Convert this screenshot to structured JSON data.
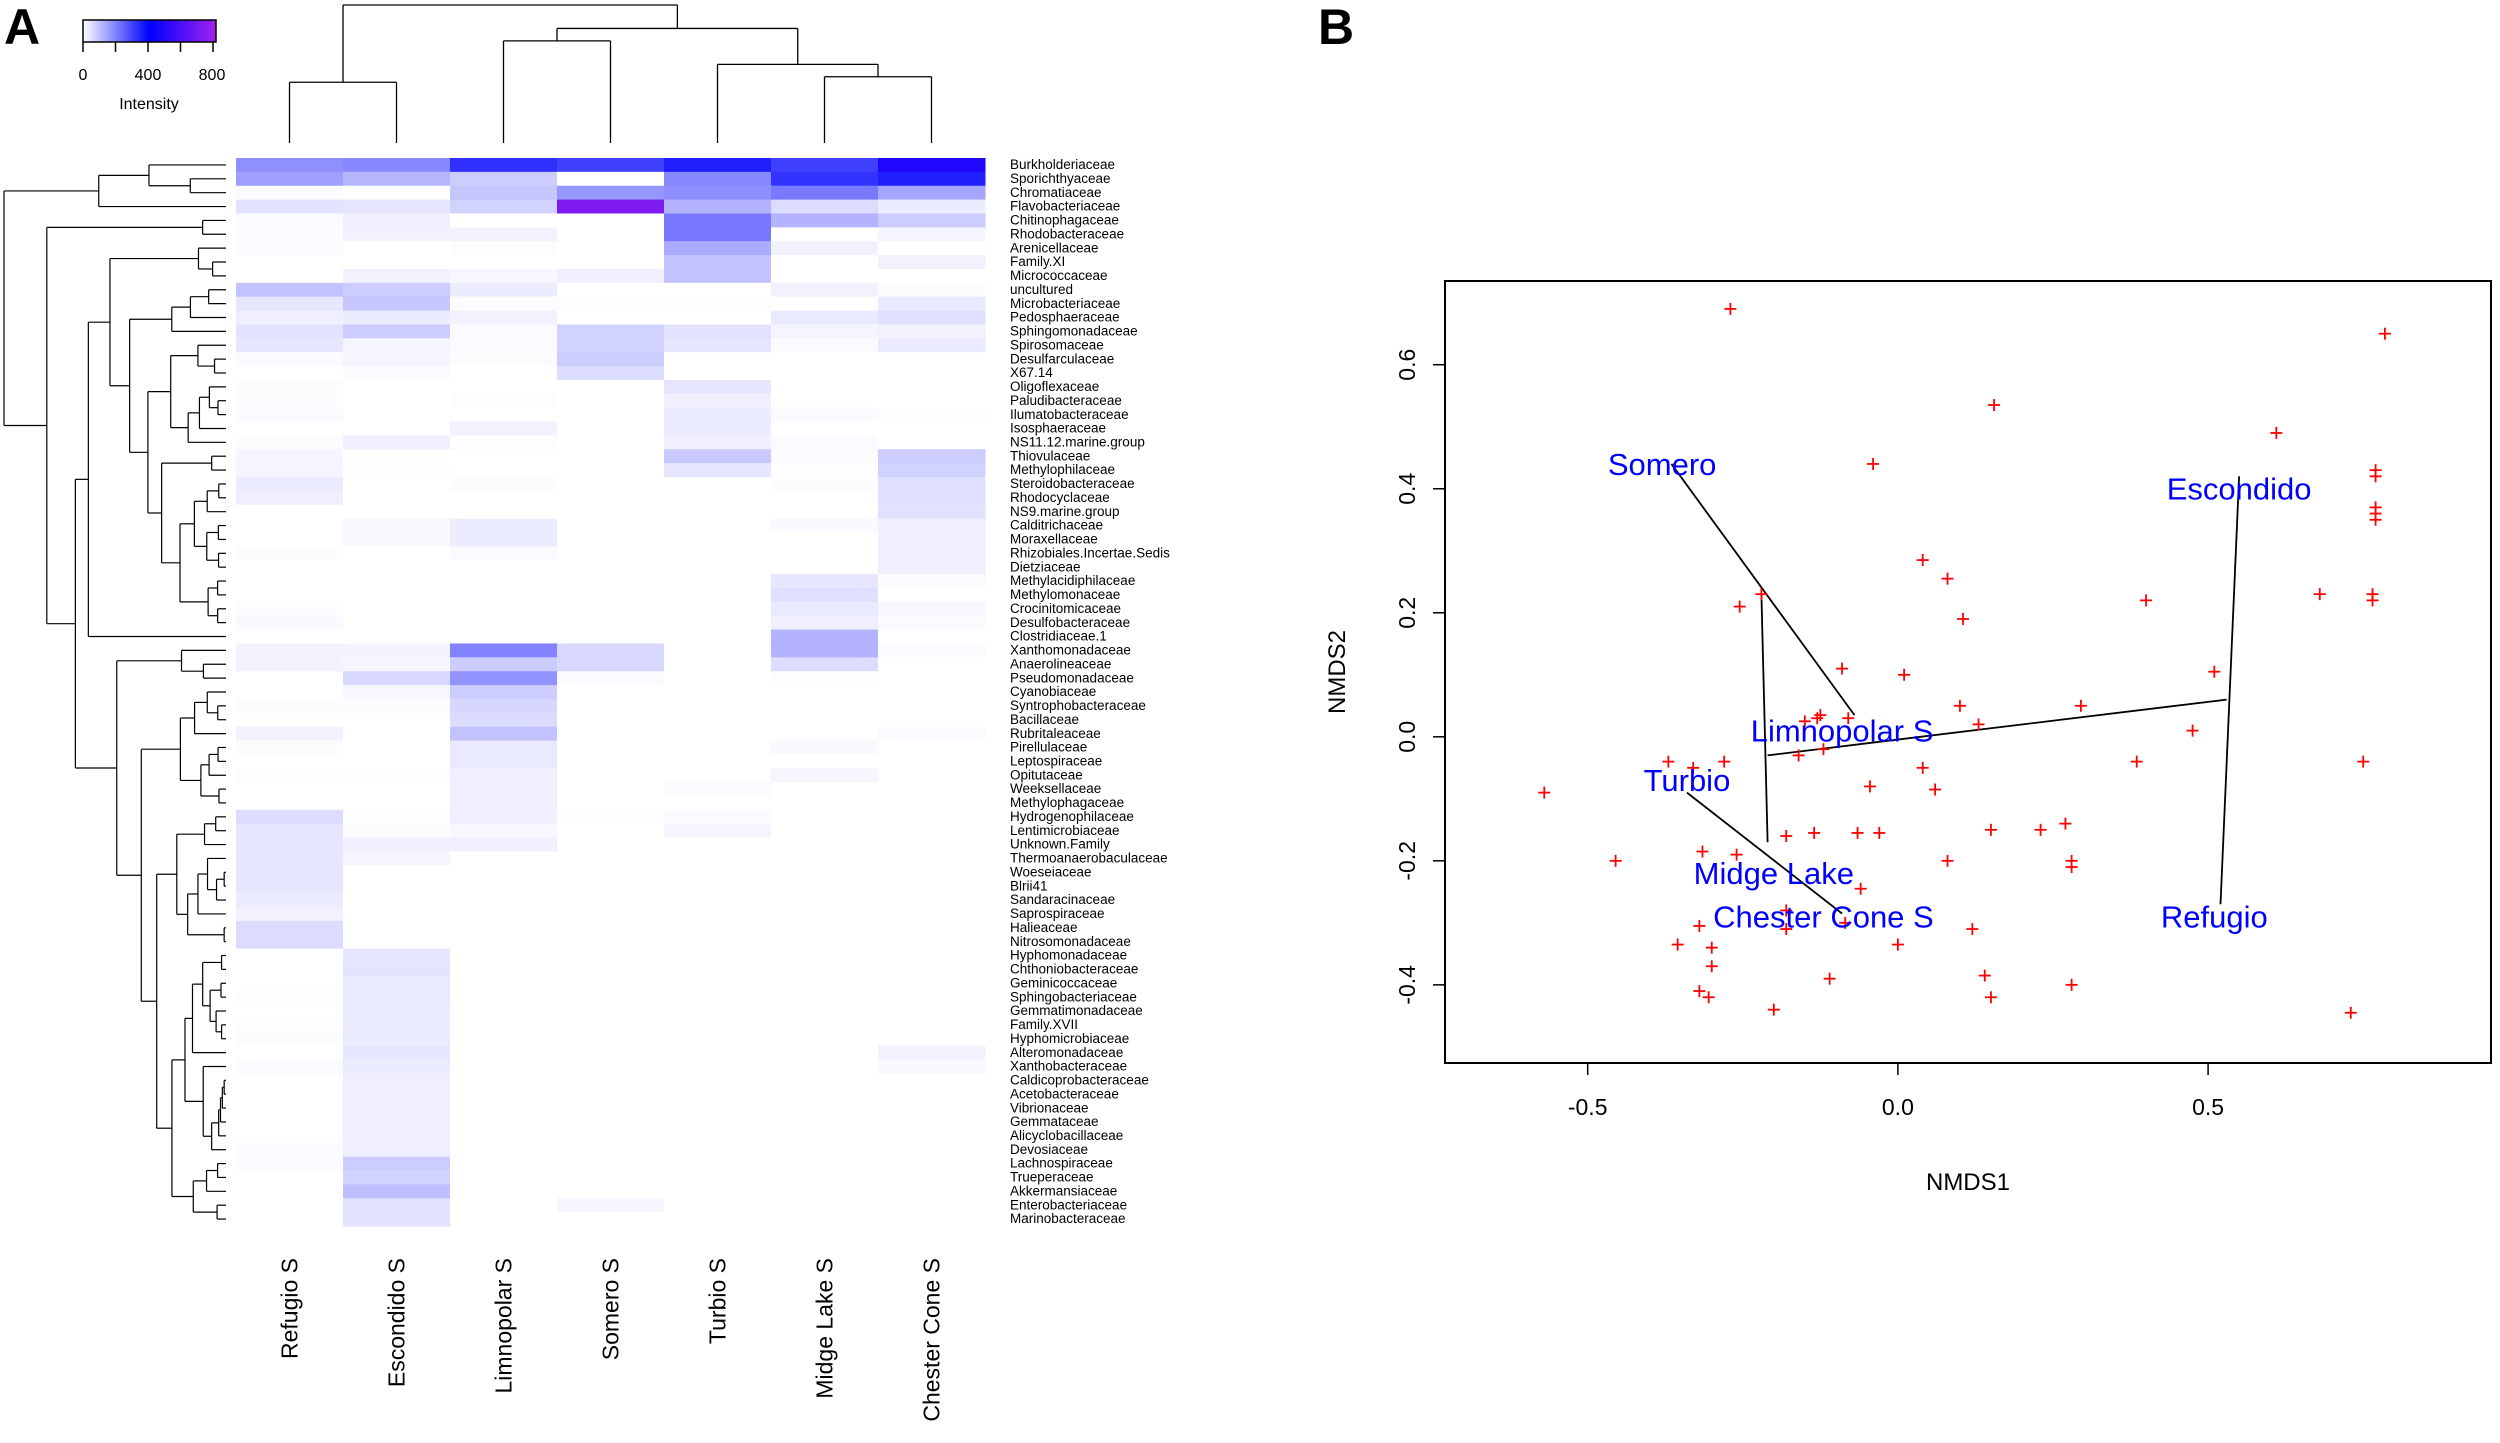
{
  "panel_a_letter": "A",
  "panel_b_letter": "B",
  "chart_data": [
    {
      "type": "heatmap",
      "title": "",
      "colorbar": {
        "label": "Intensity",
        "ticks": [
          "0",
          "400",
          "800"
        ],
        "range": [
          0,
          800
        ],
        "colors": [
          "#ffffff",
          "#0000ff",
          "#a020f0"
        ]
      },
      "columns": [
        "Refugio S",
        "Escondido S",
        "Limnopolar S",
        "Somero S",
        "Turbio S",
        "Midge Lake S",
        "Chester Cone S"
      ],
      "col_tree": {
        "h": 1,
        "children": [
          {
            "h": 0.44,
            "children": [
              0,
              1
            ]
          },
          {
            "h": 0.83,
            "children": [
              {
                "h": 0.74,
                "children": [
                  2,
                  3
                ]
              },
              {
                "h": 0.57,
                "children": [
                  4,
                  {
                    "h": 0.48,
                    "children": [
                      5,
                      6
                    ]
                  }
                ]
              }
            ]
          }
        ]
      },
      "rows": [
        "Burkholderiaceae",
        "Sporichthyaceae",
        "Chromatiaceae",
        "Flavobacteriaceae",
        "Chitinophagaceae",
        "Rhodobacteraceae",
        "Arenicellaceae",
        "Family.XI",
        "Micrococcaceae",
        "uncultured",
        "Microbacteriaceae",
        "Pedosphaeraceae",
        "Sphingomonadaceae",
        "Spirosomaceae",
        "Desulfarculaceae",
        "X67.14",
        "Oligoflexaceae",
        "Paludibacteraceae",
        "Ilumatobacteraceae",
        "Isosphaeraceae",
        "NS11.12.marine.group",
        "Thiovulaceae",
        "Methylophilaceae",
        "Steroidobacteraceae",
        "Rhodocyclaceae",
        "NS9.marine.group",
        "Calditrichaceae",
        "Moraxellaceae",
        "Rhizobiales.Incertae.Sedis",
        "Dietziaceae",
        "Methylacidiphilaceae",
        "Methylomonaceae",
        "Crocinitomicaceae",
        "Desulfobacteraceae",
        "Clostridiaceae.1",
        "Xanthomonadaceae",
        "Anaerolineaceae",
        "Pseudomonadaceae",
        "Cyanobiaceae",
        "Syntrophobacteraceae",
        "Bacillaceae",
        "Rubritaleaceae",
        "Pirellulaceae",
        "Leptospiraceae",
        "Opitutaceae",
        "Weeksellaceae",
        "Methylophagaceae",
        "Hydrogenophilaceae",
        "Lentimicrobiaceae",
        "Unknown.Family",
        "Thermoanaerobaculaceae",
        "Woeseiaceae",
        "Blrii41",
        "Sandaracinaceae",
        "Saprospiraceae",
        "Halieaceae",
        "Nitrosomonadaceae",
        "Hyphomonadaceae",
        "Chthoniobacteraceae",
        "Geminicoccaceae",
        "Sphingobacteriaceae",
        "Gemmatimonadaceae",
        "Family.XVII",
        "Hyphomicrobiaceae",
        "Alteromonadaceae",
        "Xanthobacteraceae",
        "Caldicoprobacteraceae",
        "Acetobacteraceae",
        "Vibrionaceae",
        "Gemmataceae",
        "Alicyclobacillaceae",
        "Devosiaceae",
        "Lachnospiraceae",
        "Trueperaceae",
        "Akkermansiaceae",
        "Enterobacteriaceae",
        "Marinobacteraceae"
      ],
      "values": [
        [
          175,
          185,
          325,
          300,
          350,
          300,
          480
        ],
        [
          150,
          115,
          80,
          0,
          185,
          320,
          350
        ],
        [
          8,
          0,
          90,
          165,
          175,
          210,
          140
        ],
        [
          45,
          40,
          70,
          720,
          120,
          55,
          30
        ],
        [
          8,
          25,
          0,
          0,
          210,
          120,
          80
        ],
        [
          8,
          20,
          20,
          0,
          215,
          0,
          15
        ],
        [
          8,
          0,
          5,
          0,
          130,
          20,
          0
        ],
        [
          0,
          0,
          0,
          0,
          95,
          0,
          20
        ],
        [
          0,
          20,
          12,
          25,
          95,
          0,
          0
        ],
        [
          95,
          80,
          30,
          0,
          0,
          20,
          4
        ],
        [
          40,
          90,
          5,
          5,
          3,
          0,
          35
        ],
        [
          25,
          30,
          20,
          0,
          0,
          35,
          50
        ],
        [
          45,
          80,
          8,
          70,
          45,
          15,
          20
        ],
        [
          40,
          15,
          8,
          70,
          40,
          8,
          35
        ],
        [
          8,
          15,
          5,
          80,
          0,
          0,
          0
        ],
        [
          0,
          8,
          0,
          55,
          0,
          0,
          0
        ],
        [
          5,
          0,
          0,
          0,
          40,
          0,
          0
        ],
        [
          5,
          0,
          5,
          0,
          25,
          0,
          0
        ],
        [
          8,
          0,
          0,
          0,
          30,
          8,
          3
        ],
        [
          0,
          0,
          20,
          0,
          30,
          0,
          0
        ],
        [
          5,
          25,
          3,
          0,
          25,
          8,
          0
        ],
        [
          15,
          0,
          0,
          0,
          85,
          8,
          80
        ],
        [
          15,
          3,
          0,
          0,
          40,
          3,
          70
        ],
        [
          30,
          0,
          5,
          0,
          0,
          5,
          50
        ],
        [
          25,
          0,
          0,
          0,
          0,
          0,
          50
        ],
        [
          0,
          0,
          0,
          0,
          0,
          0,
          45
        ],
        [
          0,
          10,
          30,
          0,
          0,
          10,
          25
        ],
        [
          0,
          10,
          30,
          0,
          0,
          0,
          25
        ],
        [
          5,
          0,
          8,
          0,
          0,
          0,
          25
        ],
        [
          0,
          0,
          0,
          0,
          0,
          0,
          25
        ],
        [
          0,
          0,
          0,
          0,
          0,
          40,
          8
        ],
        [
          0,
          0,
          0,
          0,
          0,
          50,
          0
        ],
        [
          5,
          0,
          0,
          0,
          0,
          35,
          12
        ],
        [
          10,
          0,
          0,
          0,
          0,
          25,
          6
        ],
        [
          0,
          0,
          0,
          0,
          0,
          120,
          0
        ],
        [
          20,
          18,
          195,
          60,
          0,
          120,
          8
        ],
        [
          20,
          12,
          80,
          60,
          0,
          55,
          0
        ],
        [
          0,
          60,
          170,
          6,
          0,
          3,
          0
        ],
        [
          0,
          12,
          80,
          0,
          0,
          0,
          0
        ],
        [
          5,
          5,
          65,
          0,
          0,
          0,
          0
        ],
        [
          0,
          0,
          55,
          0,
          0,
          0,
          0
        ],
        [
          20,
          0,
          95,
          0,
          0,
          0,
          8
        ],
        [
          5,
          0,
          35,
          0,
          0,
          10,
          0
        ],
        [
          0,
          0,
          35,
          0,
          0,
          0,
          0
        ],
        [
          5,
          5,
          25,
          0,
          0,
          15,
          0
        ],
        [
          0,
          0,
          25,
          0,
          8,
          0,
          0
        ],
        [
          0,
          0,
          25,
          0,
          0,
          0,
          0
        ],
        [
          55,
          3,
          25,
          3,
          8,
          0,
          0
        ],
        [
          40,
          5,
          12,
          0,
          15,
          0,
          0
        ],
        [
          40,
          25,
          25,
          0,
          0,
          0,
          0
        ],
        [
          40,
          15,
          0,
          0,
          0,
          0,
          0
        ],
        [
          40,
          0,
          0,
          0,
          0,
          0,
          0
        ],
        [
          40,
          0,
          0,
          0,
          0,
          0,
          0
        ],
        [
          30,
          0,
          0,
          0,
          0,
          0,
          0
        ],
        [
          20,
          0,
          0,
          0,
          0,
          0,
          0
        ],
        [
          55,
          0,
          0,
          0,
          0,
          0,
          0
        ],
        [
          55,
          0,
          0,
          0,
          0,
          0,
          0
        ],
        [
          0,
          40,
          0,
          0,
          0,
          0,
          0
        ],
        [
          0,
          42,
          0,
          0,
          0,
          0,
          0
        ],
        [
          0,
          35,
          0,
          0,
          0,
          0,
          0
        ],
        [
          3,
          35,
          0,
          0,
          0,
          0,
          0
        ],
        [
          0,
          30,
          0,
          0,
          0,
          0,
          0
        ],
        [
          3,
          30,
          0,
          0,
          0,
          0,
          0
        ],
        [
          5,
          30,
          0,
          0,
          0,
          0,
          0
        ],
        [
          0,
          40,
          0,
          0,
          0,
          0,
          20
        ],
        [
          8,
          30,
          0,
          0,
          0,
          0,
          10
        ],
        [
          0,
          25,
          0,
          0,
          0,
          0,
          0
        ],
        [
          0,
          25,
          0,
          0,
          0,
          0,
          0
        ],
        [
          0,
          25,
          0,
          0,
          0,
          0,
          0
        ],
        [
          0,
          25,
          0,
          0,
          0,
          0,
          0
        ],
        [
          0,
          25,
          0,
          0,
          0,
          0,
          0
        ],
        [
          8,
          25,
          0,
          0,
          0,
          0,
          0
        ],
        [
          8,
          80,
          0,
          0,
          0,
          0,
          0
        ],
        [
          0,
          70,
          0,
          0,
          0,
          0,
          0
        ],
        [
          0,
          100,
          0,
          0,
          0,
          0,
          0
        ],
        [
          0,
          45,
          0,
          15,
          0,
          0,
          0
        ],
        [
          0,
          45,
          0,
          0,
          0,
          0,
          0
        ]
      ]
    },
    {
      "type": "scatter",
      "title": "",
      "xlabel": "NMDS1",
      "ylabel": "NMDS2",
      "xlim": [
        -0.73,
        0.956
      ],
      "ylim": [
        -0.526,
        0.735
      ],
      "xticks": [
        -0.5,
        0.0,
        0.5
      ],
      "xtick_labels": [
        "-0.5",
        "0.0",
        "0.5"
      ],
      "yticks": [
        -0.4,
        -0.2,
        0.0,
        0.2,
        0.4,
        0.6
      ],
      "ytick_labels": [
        "-0.4",
        "-0.2",
        "0.0",
        "0.2",
        "0.4",
        "0.6"
      ],
      "marker": "+",
      "point_color": "#ff0000",
      "label_color": "#0000ff",
      "points": [
        [
          -0.27,
          0.69
        ],
        [
          0.785,
          0.65
        ],
        [
          0.155,
          0.535
        ],
        [
          0.61,
          0.49
        ],
        [
          -0.04,
          0.44
        ],
        [
          0.77,
          0.43
        ],
        [
          0.77,
          0.42
        ],
        [
          0.77,
          0.37
        ],
        [
          0.77,
          0.36
        ],
        [
          0.77,
          0.35
        ],
        [
          0.04,
          0.285
        ],
        [
          0.08,
          0.255
        ],
        [
          -0.255,
          0.21
        ],
        [
          -0.22,
          0.23
        ],
        [
          0.105,
          0.19
        ],
        [
          0.4,
          0.22
        ],
        [
          0.68,
          0.23
        ],
        [
          0.765,
          0.23
        ],
        [
          0.765,
          0.22
        ],
        [
          -0.09,
          0.11
        ],
        [
          0.01,
          0.1
        ],
        [
          0.51,
          0.105
        ],
        [
          0.1,
          0.05
        ],
        [
          0.295,
          0.05
        ],
        [
          -0.125,
          0.035
        ],
        [
          -0.13,
          0.03
        ],
        [
          -0.08,
          0.03
        ],
        [
          0.13,
          0.02
        ],
        [
          0.475,
          0.01
        ],
        [
          -0.15,
          0.025
        ],
        [
          -0.12,
          -0.02
        ],
        [
          -0.16,
          -0.03
        ],
        [
          0.04,
          -0.05
        ],
        [
          0.385,
          -0.04
        ],
        [
          0.75,
          -0.04
        ],
        [
          -0.045,
          -0.08
        ],
        [
          0.06,
          -0.085
        ],
        [
          -0.37,
          -0.04
        ],
        [
          -0.33,
          -0.05
        ],
        [
          -0.28,
          -0.04
        ],
        [
          -0.57,
          -0.09
        ],
        [
          -0.455,
          -0.2
        ],
        [
          -0.315,
          -0.185
        ],
        [
          -0.26,
          -0.19
        ],
        [
          -0.18,
          -0.16
        ],
        [
          -0.135,
          -0.155
        ],
        [
          -0.065,
          -0.155
        ],
        [
          -0.03,
          -0.155
        ],
        [
          0.15,
          -0.15
        ],
        [
          0.23,
          -0.15
        ],
        [
          0.27,
          -0.14
        ],
        [
          0.28,
          -0.2
        ],
        [
          0.28,
          -0.21
        ],
        [
          0.08,
          -0.2
        ],
        [
          -0.06,
          -0.245
        ],
        [
          -0.32,
          -0.305
        ],
        [
          -0.355,
          -0.335
        ],
        [
          -0.3,
          -0.34
        ],
        [
          -0.3,
          -0.37
        ],
        [
          -0.18,
          -0.31
        ],
        [
          -0.085,
          -0.3
        ],
        [
          0.0,
          -0.335
        ],
        [
          0.12,
          -0.31
        ],
        [
          0.14,
          -0.385
        ],
        [
          0.15,
          -0.42
        ],
        [
          0.28,
          -0.4
        ],
        [
          -0.11,
          -0.39
        ],
        [
          -0.32,
          -0.41
        ],
        [
          -0.305,
          -0.42
        ],
        [
          -0.2,
          -0.44
        ],
        [
          0.73,
          -0.445
        ],
        [
          -0.18,
          -0.28
        ]
      ],
      "segments": [
        [
          -0.365,
          0.44,
          -0.07,
          0.035
        ],
        [
          -0.22,
          0.23,
          -0.21,
          -0.17
        ],
        [
          -0.21,
          -0.03,
          0.53,
          0.06
        ],
        [
          0.55,
          0.42,
          0.52,
          -0.27
        ],
        [
          -0.34,
          -0.09,
          -0.09,
          -0.285
        ]
      ],
      "site_labels": [
        {
          "text": "Somero",
          "x": -0.38,
          "y": 0.44
        },
        {
          "text": "Escondido",
          "x": 0.55,
          "y": 0.4
        },
        {
          "text": "Limnopolar S",
          "x": -0.09,
          "y": 0.01
        },
        {
          "text": "Turbio",
          "x": -0.34,
          "y": -0.07
        },
        {
          "text": "Midge Lake",
          "x": -0.2,
          "y": -0.22
        },
        {
          "text": "Chester Cone S",
          "x": -0.12,
          "y": -0.29
        },
        {
          "text": "Refugio",
          "x": 0.51,
          "y": -0.29
        }
      ]
    }
  ]
}
